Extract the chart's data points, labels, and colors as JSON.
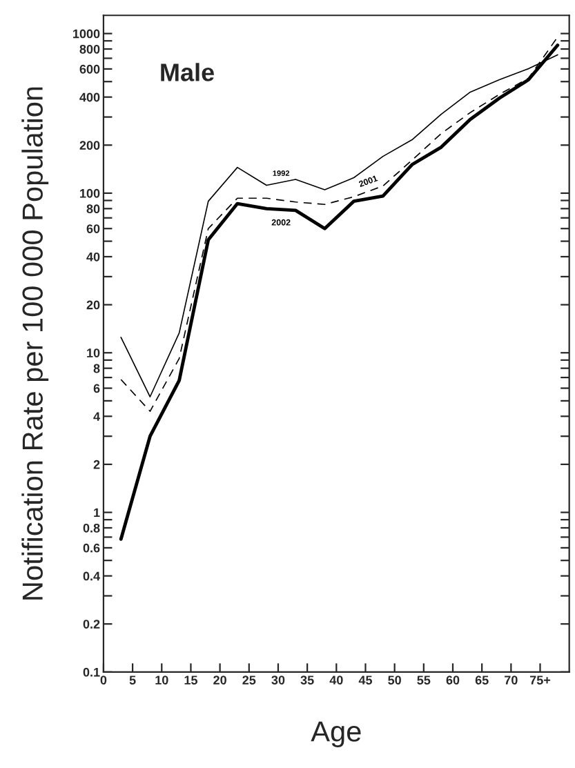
{
  "chart_data": {
    "type": "line",
    "title": "Male",
    "xlabel": "Age",
    "ylabel": "Notification Rate per 100 000 Population",
    "x": [
      3,
      8,
      13,
      18,
      23,
      28,
      33,
      38,
      43,
      48,
      53,
      58,
      63,
      68,
      73,
      78
    ],
    "series": [
      {
        "name": "1992",
        "color": "#000000",
        "line_style": "solid",
        "values": [
          12.5,
          5.3,
          13.3,
          89,
          145,
          112,
          122,
          105,
          125,
          170,
          216,
          312,
          430,
          514,
          602,
          736
        ]
      },
      {
        "name": "2001",
        "color": "#000000",
        "line_style": "dashed",
        "values": [
          6.8,
          4.3,
          9.2,
          60,
          93,
          93,
          88,
          85,
          95,
          111,
          161,
          236,
          320,
          416,
          525,
          950
        ]
      },
      {
        "name": "2002",
        "color": "#000000",
        "line_style": "solid",
        "values": [
          0.68,
          3.0,
          6.7,
          51,
          86,
          80,
          78,
          60,
          89,
          96,
          151,
          194,
          290,
          394,
          514,
          845
        ]
      }
    ],
    "log": "y",
    "xlim": [
      0,
      80
    ],
    "ylim": [
      0.1,
      1300
    ],
    "xticks": [
      0,
      5,
      10,
      15,
      20,
      25,
      30,
      35,
      40,
      45,
      50,
      55,
      60,
      65,
      70,
      {
        "value": 75,
        "label": "75+"
      }
    ],
    "yticks": [
      0.1,
      0.2,
      {
        "value": 0.3,
        "label": null
      },
      0.4,
      {
        "value": 0.5,
        "label": null
      },
      0.6,
      {
        "value": 0.7,
        "label": null
      },
      0.8,
      {
        "value": 0.9,
        "label": null
      },
      1,
      2,
      {
        "value": 3,
        "label": null
      },
      4,
      {
        "value": 5,
        "label": null
      },
      6,
      {
        "value": 7,
        "label": null
      },
      8,
      {
        "value": 9,
        "label": null
      },
      10,
      20,
      {
        "value": 30,
        "label": null
      },
      40,
      {
        "value": 50,
        "label": null
      },
      60,
      {
        "value": 70,
        "label": null
      },
      80,
      {
        "value": 90,
        "label": null
      },
      100,
      200,
      {
        "value": 300,
        "label": null
      },
      400,
      {
        "value": 500,
        "label": null
      },
      600,
      {
        "value": 700,
        "label": null
      },
      800,
      {
        "value": 900,
        "label": null
      },
      1000
    ],
    "grid": false,
    "marker": "none"
  }
}
